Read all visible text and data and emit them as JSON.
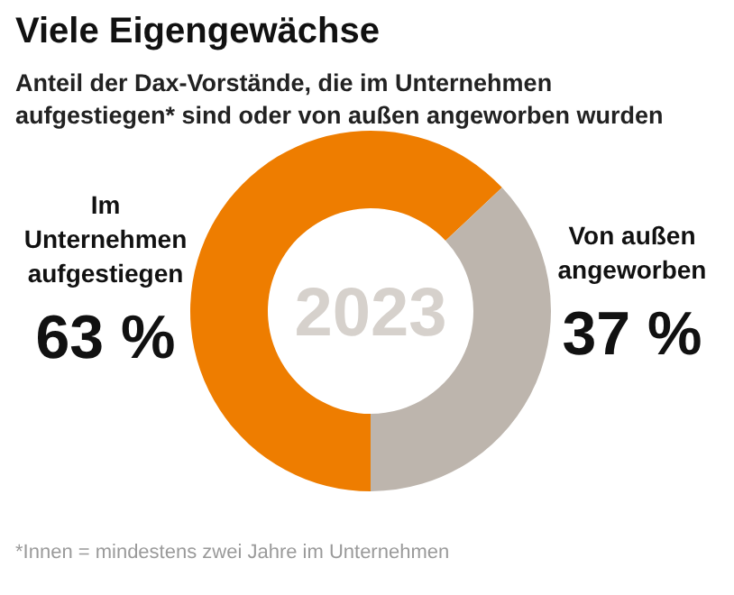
{
  "chart_data": {
    "type": "donut",
    "title": "Viele Eigengewächse",
    "subtitle": "Anteil der Dax-Vorstände, die im Unternehmen aufgestiegen* sind oder von außen angeworben wurden",
    "categories": [
      "Im Unternehmen aufgestiegen",
      "Von außen angeworben"
    ],
    "values": [
      63,
      37
    ],
    "colors": [
      "#ee7d00",
      "#bdb5ad"
    ],
    "value_labels": [
      "63 %",
      "37 %"
    ],
    "annotations": [
      "2023",
      "*Innen = mindestens zwei Jahre im Unternehmen"
    ]
  }
}
